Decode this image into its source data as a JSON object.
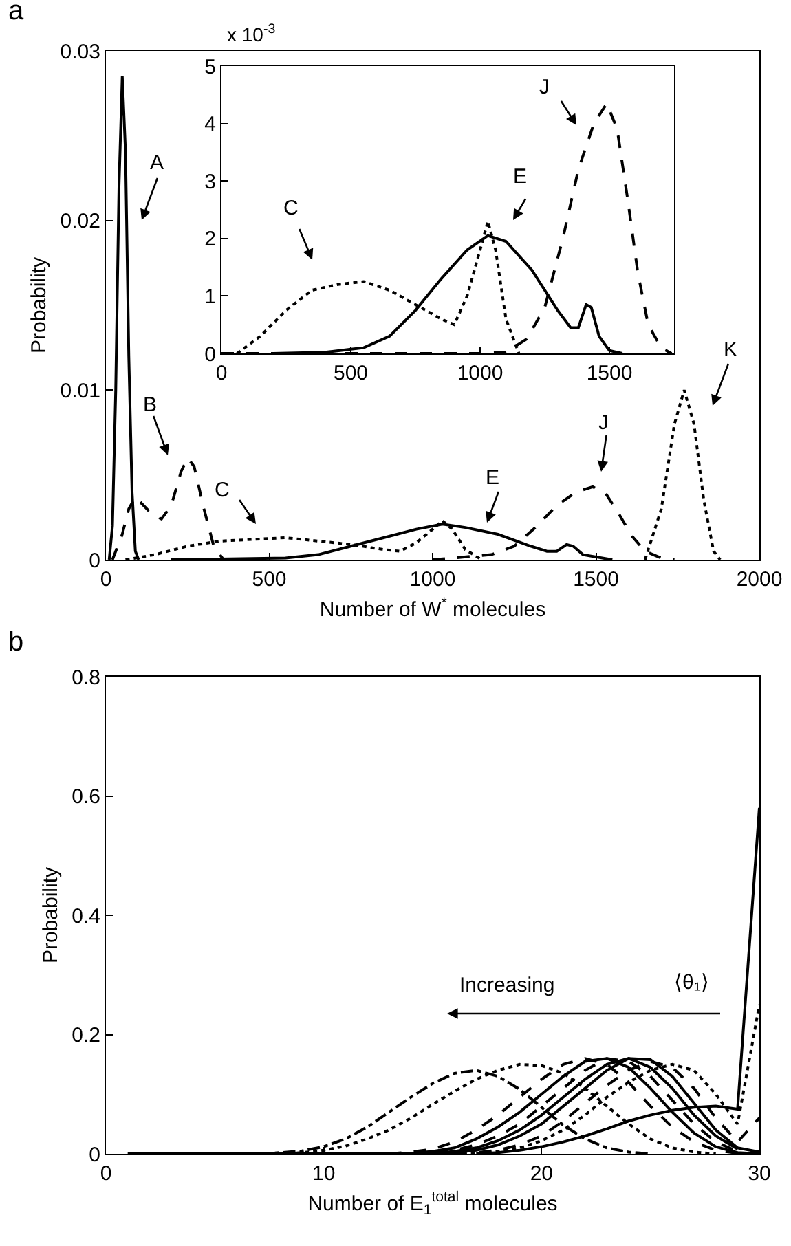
{
  "chart_data": [
    {
      "type": "line",
      "xlabel": "Number of W$^{*}$ molecules",
      "ylabel": "Probability",
      "xlim": [
        0,
        2000
      ],
      "xticks": [
        0,
        500,
        1000,
        1500,
        2000
      ],
      "ylim": [
        0,
        0.03
      ],
      "yticks": [
        0,
        0.01,
        0.02,
        0.03
      ],
      "marker": "none",
      "annotations": [
        "a",
        "A",
        "B",
        "C",
        "E",
        "J",
        "K"
      ],
      "series": [
        {
          "color": "#000000",
          "line_style": "solid",
          "x": [
            10,
            20,
            30,
            40,
            50,
            60,
            70,
            80,
            90,
            100
          ],
          "values": [
            0,
            0.002,
            0.01,
            0.022,
            0.0285,
            0.024,
            0.012,
            0.004,
            0.0005,
            0
          ]
        },
        {
          "color": "#000000",
          "line_style": "dashed",
          "x": [
            20,
            50,
            70,
            90,
            110,
            140,
            170,
            200,
            230,
            250,
            270,
            300,
            330,
            360
          ],
          "values": [
            0,
            0.0015,
            0.003,
            0.0037,
            0.0033,
            0.0027,
            0.0024,
            0.0032,
            0.0052,
            0.006,
            0.0055,
            0.003,
            0.0008,
            0
          ]
        },
        {
          "color": "#000000",
          "line_style": "dotted",
          "x": [
            60,
            150,
            250,
            350,
            450,
            550,
            650,
            750,
            850,
            900,
            950,
            1000,
            1030,
            1060,
            1100,
            1150
          ],
          "values": [
            0,
            0.0003,
            0.0008,
            0.0011,
            0.0012,
            0.0013,
            0.0011,
            0.0009,
            0.0006,
            0.0005,
            0.001,
            0.0018,
            0.0023,
            0.0018,
            0.0006,
            0
          ]
        },
        {
          "color": "#000000",
          "line_style": "solid",
          "x": [
            200,
            550,
            650,
            750,
            850,
            950,
            1030,
            1100,
            1200,
            1300,
            1350,
            1380,
            1410,
            1430,
            1460,
            1550
          ],
          "values": [
            0,
            0.0001,
            0.0003,
            0.0008,
            0.0013,
            0.0018,
            0.0021,
            0.0019,
            0.0015,
            0.0008,
            0.0005,
            0.0005,
            0.0009,
            0.0008,
            0.0003,
            0
          ]
        },
        {
          "color": "#000000",
          "line_style": "dashed",
          "x": [
            1000,
            1180,
            1250,
            1320,
            1380,
            1440,
            1490,
            1530,
            1570,
            1610,
            1650,
            1700,
            1740
          ],
          "values": [
            0,
            0.0003,
            0.0008,
            0.002,
            0.0032,
            0.004,
            0.0043,
            0.0039,
            0.0027,
            0.0014,
            0.0005,
            0.0001,
            0
          ]
        },
        {
          "color": "#000000",
          "line_style": "dotted",
          "x": [
            1650,
            1700,
            1740,
            1770,
            1800,
            1830,
            1860,
            1880
          ],
          "values": [
            0,
            0.003,
            0.008,
            0.01,
            0.008,
            0.0035,
            0.0005,
            0
          ]
        }
      ]
    },
    {
      "type": "line",
      "xlim": [
        0,
        1750
      ],
      "xticks": [
        0,
        500,
        1000,
        1500
      ],
      "ylim": [
        0,
        5
      ],
      "yticks": [
        0,
        1,
        2,
        3,
        4,
        5
      ],
      "marker": "none",
      "annotations": [
        "x 10$^{-3}$",
        "C",
        "E",
        "J"
      ],
      "series": [
        {
          "color": "#000000",
          "line_style": "dotted",
          "x": [
            60,
            150,
            250,
            350,
            450,
            550,
            650,
            750,
            850,
            900,
            950,
            1000,
            1030,
            1060,
            1100,
            1150
          ],
          "values": [
            0,
            0.3,
            0.75,
            1.1,
            1.2,
            1.25,
            1.1,
            0.85,
            0.6,
            0.5,
            1.0,
            1.8,
            2.3,
            1.8,
            0.6,
            0
          ]
        },
        {
          "color": "#000000",
          "line_style": "solid",
          "x": [
            200,
            400,
            550,
            650,
            750,
            850,
            950,
            1030,
            1100,
            1200,
            1300,
            1350,
            1380,
            1410,
            1430,
            1460,
            1500,
            1550
          ],
          "values": [
            0,
            0.02,
            0.1,
            0.3,
            0.75,
            1.3,
            1.8,
            2.05,
            1.95,
            1.45,
            0.75,
            0.45,
            0.45,
            0.85,
            0.8,
            0.3,
            0.05,
            0
          ]
        },
        {
          "color": "#000000",
          "line_style": "dashed",
          "x": [
            0,
            1000,
            1100,
            1180,
            1250,
            1320,
            1380,
            1440,
            1490,
            1530,
            1570,
            1610,
            1650,
            1700,
            1740
          ],
          "values": [
            0,
            0,
            0.02,
            0.25,
            0.8,
            2.0,
            3.2,
            4.0,
            4.35,
            3.9,
            2.7,
            1.4,
            0.5,
            0.1,
            0
          ]
        }
      ]
    },
    {
      "type": "line",
      "xlabel": "Number of E$_{1}$$^{total}$ molecules",
      "ylabel": "Probability",
      "xlim": [
        0,
        30
      ],
      "xticks": [
        0,
        10,
        20,
        30
      ],
      "ylim": [
        0,
        0.8
      ],
      "yticks": [
        0,
        0.2,
        0.4,
        0.6,
        0.8
      ],
      "marker": "none",
      "annotations": [
        "b",
        "Increasing",
        "⟨θ₁⟩"
      ],
      "series": [
        {
          "color": "#000000",
          "line_style": "dashdot",
          "x": [
            7,
            8,
            9,
            10,
            11,
            12,
            13,
            14,
            15,
            16,
            17,
            18,
            19,
            20,
            21,
            22,
            23,
            24,
            25
          ],
          "values": [
            0,
            0.002,
            0.005,
            0.012,
            0.025,
            0.045,
            0.07,
            0.095,
            0.118,
            0.135,
            0.14,
            0.13,
            0.108,
            0.078,
            0.048,
            0.025,
            0.01,
            0.003,
            0
          ]
        },
        {
          "color": "#000000",
          "line_style": "dotted",
          "x": [
            8,
            9,
            10,
            11,
            12,
            13,
            14,
            15,
            16,
            17,
            18,
            19,
            20,
            21,
            22,
            23,
            24,
            25,
            26,
            27,
            28
          ],
          "values": [
            0,
            0.002,
            0.006,
            0.013,
            0.025,
            0.04,
            0.06,
            0.083,
            0.105,
            0.125,
            0.14,
            0.15,
            0.148,
            0.135,
            0.11,
            0.08,
            0.05,
            0.025,
            0.01,
            0.003,
            0
          ]
        },
        {
          "color": "#000000",
          "line_style": "dashed",
          "x": [
            13,
            14,
            15,
            16,
            17,
            18,
            19,
            20,
            21,
            22,
            23,
            24,
            25,
            26,
            27,
            28,
            29
          ],
          "values": [
            0,
            0.003,
            0.008,
            0.02,
            0.04,
            0.065,
            0.095,
            0.125,
            0.15,
            0.16,
            0.15,
            0.12,
            0.08,
            0.045,
            0.02,
            0.006,
            0.001
          ]
        },
        {
          "color": "#000000",
          "line_style": "solid",
          "x": [
            1,
            13,
            14,
            15,
            16,
            17,
            18,
            19,
            20,
            21,
            22,
            23,
            24,
            25,
            26,
            27,
            28,
            29,
            30
          ],
          "values": [
            0,
            0,
            0.001,
            0.004,
            0.01,
            0.025,
            0.045,
            0.07,
            0.1,
            0.13,
            0.155,
            0.16,
            0.145,
            0.11,
            0.07,
            0.035,
            0.012,
            0.002,
            0
          ]
        },
        {
          "color": "#000000",
          "line_style": "dashed",
          "x": [
            14,
            15,
            16,
            17,
            18,
            19,
            20,
            21,
            22,
            23,
            24,
            25,
            26,
            27,
            28,
            29
          ],
          "values": [
            0,
            0.002,
            0.006,
            0.015,
            0.03,
            0.05,
            0.08,
            0.11,
            0.14,
            0.16,
            0.155,
            0.13,
            0.09,
            0.05,
            0.02,
            0.004
          ]
        },
        {
          "color": "#000000",
          "line_style": "solid",
          "x": [
            14,
            15,
            16,
            17,
            18,
            19,
            20,
            21,
            22,
            23,
            24,
            25,
            26,
            27,
            28,
            29
          ],
          "values": [
            0,
            0.001,
            0.004,
            0.01,
            0.022,
            0.04,
            0.065,
            0.095,
            0.125,
            0.15,
            0.16,
            0.145,
            0.11,
            0.065,
            0.03,
            0.008
          ]
        },
        {
          "color": "#000000",
          "line_style": "solid",
          "x": [
            15,
            16,
            17,
            18,
            19,
            20,
            21,
            22,
            23,
            24,
            25,
            26,
            27,
            28,
            29,
            30
          ],
          "values": [
            0,
            0.002,
            0.006,
            0.015,
            0.03,
            0.05,
            0.08,
            0.11,
            0.14,
            0.16,
            0.158,
            0.13,
            0.085,
            0.04,
            0.01,
            0.003
          ]
        },
        {
          "color": "#000000",
          "line_style": "dashed",
          "x": [
            16,
            17,
            18,
            19,
            20,
            21,
            22,
            23,
            24,
            25,
            26,
            27,
            28,
            29,
            30
          ],
          "values": [
            0,
            0.002,
            0.006,
            0.015,
            0.03,
            0.055,
            0.085,
            0.115,
            0.14,
            0.155,
            0.145,
            0.11,
            0.06,
            0.02,
            0.06
          ]
        },
        {
          "color": "#000000",
          "line_style": "dotted",
          "x": [
            16,
            17,
            18,
            19,
            20,
            21,
            22,
            23,
            24,
            25,
            26,
            27,
            28,
            29,
            30
          ],
          "values": [
            0,
            0.001,
            0.004,
            0.01,
            0.022,
            0.04,
            0.065,
            0.095,
            0.12,
            0.14,
            0.15,
            0.14,
            0.1,
            0.05,
            0.25
          ]
        },
        {
          "color": "#000000",
          "line_style": "solid",
          "x": [
            17,
            18,
            19,
            20,
            21,
            22,
            23,
            24,
            25,
            26,
            27,
            28,
            29,
            30
          ],
          "values": [
            0,
            0.002,
            0.006,
            0.012,
            0.02,
            0.03,
            0.042,
            0.055,
            0.065,
            0.073,
            0.078,
            0.08,
            0.075,
            0.58
          ]
        }
      ]
    }
  ]
}
